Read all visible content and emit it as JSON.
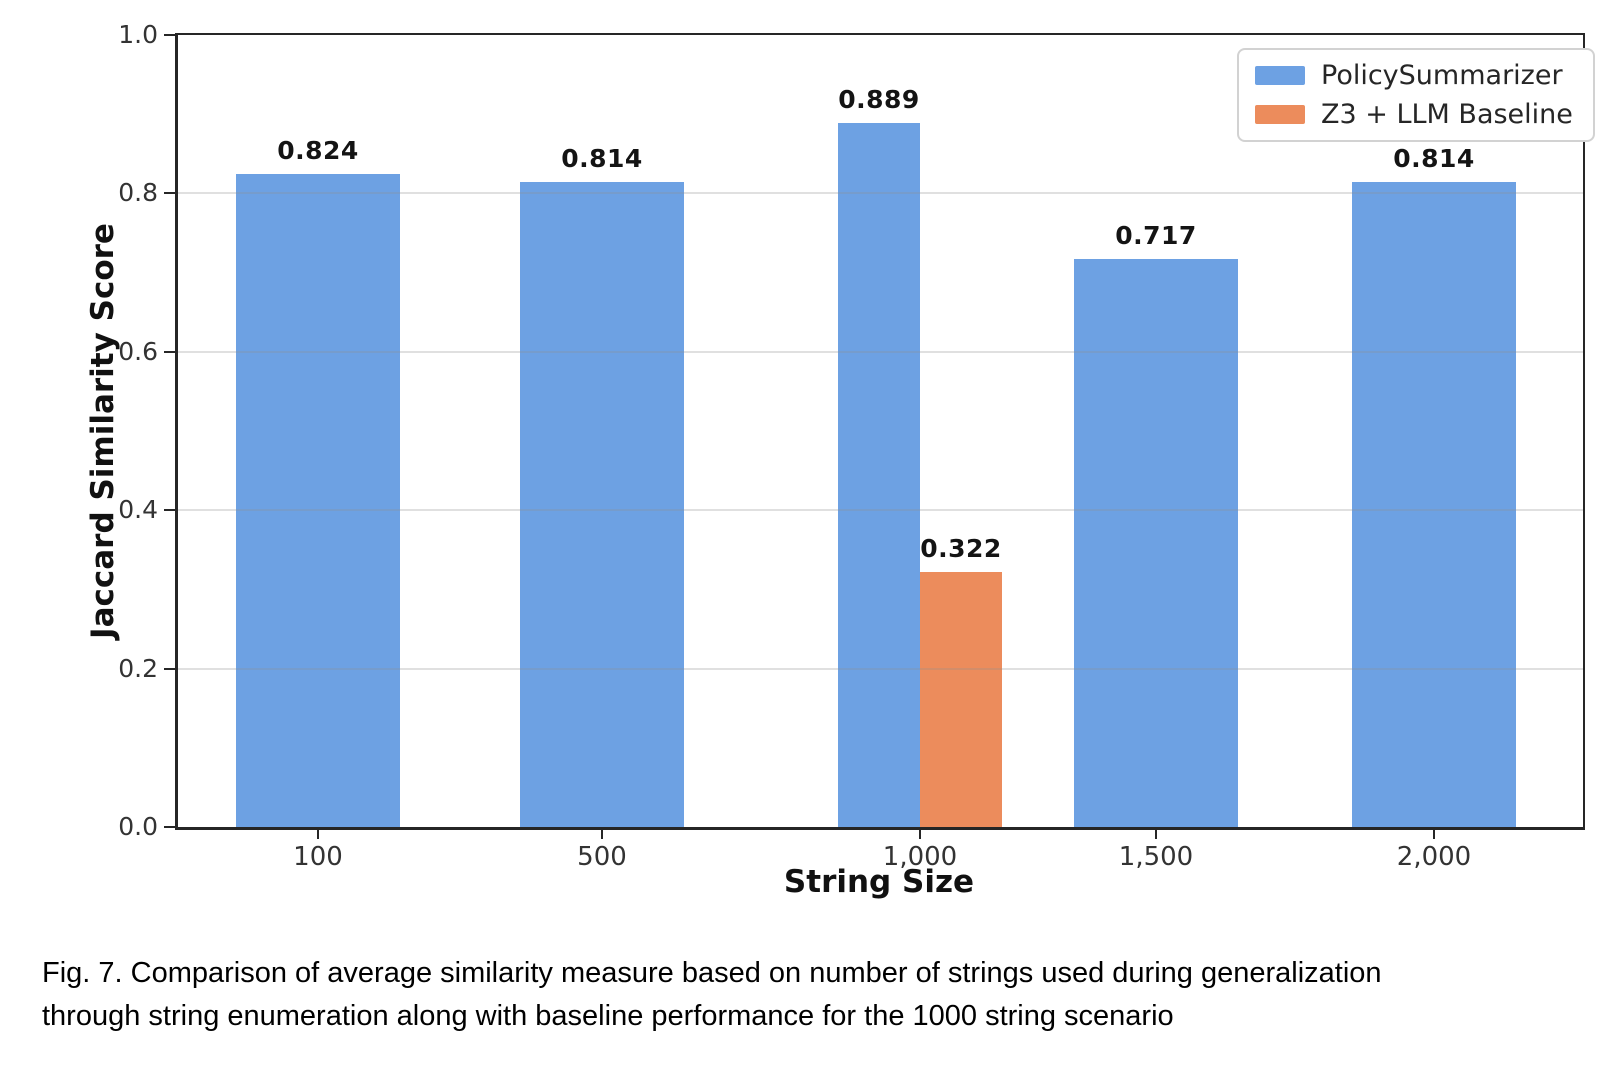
{
  "figure": {
    "caption": {
      "lines": [
        "Fig. 7.  Comparison of average similarity measure based on number of strings used during generalization",
        "through string enumeration along with baseline performance for the 1000 string scenario"
      ]
    }
  },
  "chart_data": {
    "type": "bar",
    "title": "",
    "xlabel": "String Size",
    "ylabel": "Jaccard Similarity Score",
    "categories": [
      "100",
      "500",
      "1,000",
      "1,500",
      "2,000"
    ],
    "series": [
      {
        "name": "PolicySummarizer",
        "color": "#6DA1E3",
        "values": [
          0.824,
          0.814,
          0.889,
          0.717,
          0.814
        ]
      },
      {
        "name": "Z3 + LLM Baseline",
        "color": "#EC8C5C",
        "values": [
          null,
          null,
          0.322,
          null,
          null
        ]
      }
    ],
    "bar_value_labels": [
      "0.824",
      "0.814",
      "0.889",
      "0.717",
      "0.814",
      "0.322"
    ],
    "ylim": [
      0.0,
      1.0
    ],
    "yticks": [
      0.0,
      0.2,
      0.4,
      0.6,
      0.8,
      1.0
    ],
    "grid": true,
    "legend_position": "upper right"
  }
}
